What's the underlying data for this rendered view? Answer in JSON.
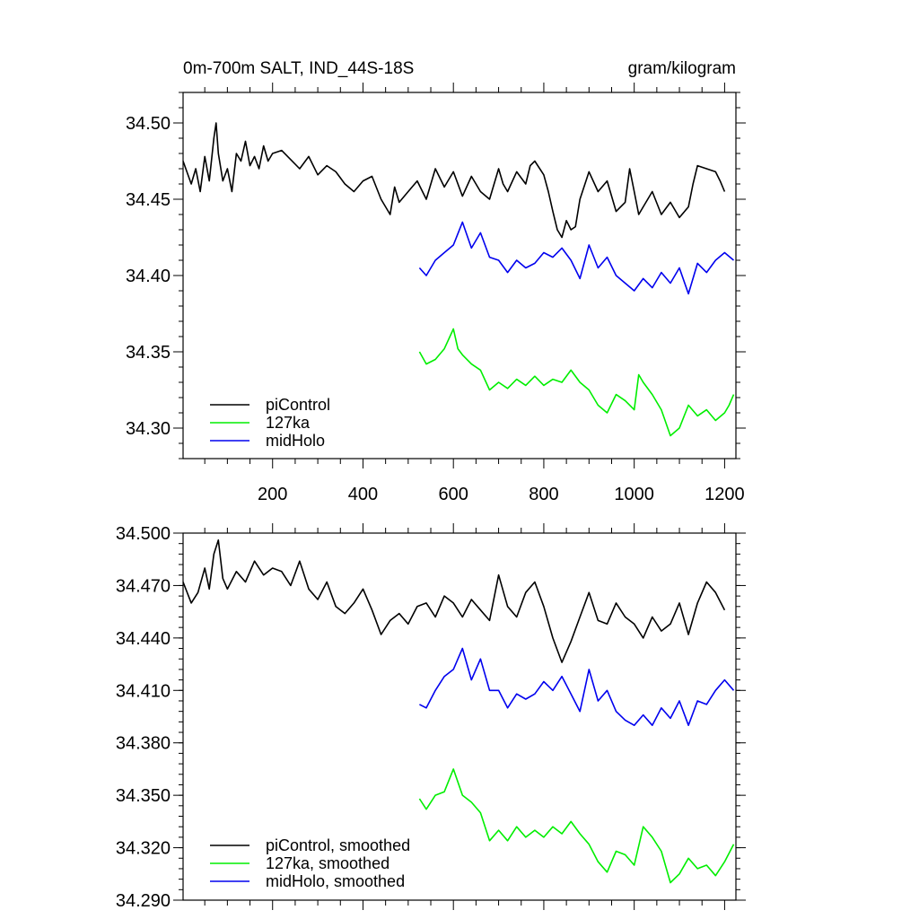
{
  "chart_data": [
    {
      "type": "line",
      "title_left": "0m-700m SALT, IND_44S-18S",
      "title_right": "gram/kilogram",
      "xlim": [
        2,
        1225
      ],
      "ylim": [
        34.28,
        34.52
      ],
      "x_ticks": [
        200,
        400,
        600,
        800,
        1000,
        1200
      ],
      "x_tick_labels": [
        "200",
        "400",
        "600",
        "800",
        "1000",
        "1200"
      ],
      "y_ticks": [
        34.3,
        34.35,
        34.4,
        34.45,
        34.5
      ],
      "y_tick_labels": [
        "34.30",
        "34.35",
        "34.40",
        "34.45",
        "34.50"
      ],
      "legend_position": "bottom-left",
      "colors": {
        "piControl": "#000000",
        "127ka": "#00ee00",
        "midHolo": "#0000ee"
      },
      "series": [
        {
          "name": "piControl",
          "color": "#000000",
          "x": [
            2,
            20,
            30,
            40,
            50,
            60,
            70,
            75,
            80,
            90,
            100,
            110,
            120,
            130,
            140,
            150,
            160,
            170,
            180,
            190,
            200,
            220,
            240,
            260,
            280,
            300,
            320,
            340,
            360,
            380,
            400,
            420,
            440,
            460,
            470,
            480,
            500,
            520,
            540,
            560,
            580,
            600,
            620,
            640,
            660,
            680,
            700,
            710,
            720,
            740,
            760,
            770,
            780,
            800,
            810,
            820,
            830,
            840,
            850,
            860,
            870,
            880,
            900,
            920,
            940,
            960,
            980,
            990,
            1000,
            1010,
            1020,
            1040,
            1060,
            1080,
            1100,
            1120,
            1130,
            1140,
            1160,
            1180,
            1190,
            1200
          ],
          "values": [
            34.475,
            34.46,
            34.47,
            34.455,
            34.478,
            34.462,
            34.49,
            34.5,
            34.48,
            34.462,
            34.47,
            34.455,
            34.48,
            34.475,
            34.488,
            34.472,
            34.478,
            34.47,
            34.485,
            34.475,
            34.48,
            34.482,
            34.476,
            34.47,
            34.478,
            34.466,
            34.472,
            34.468,
            34.46,
            34.455,
            34.462,
            34.465,
            34.45,
            34.44,
            34.458,
            34.448,
            34.455,
            34.462,
            34.45,
            34.47,
            34.458,
            34.468,
            34.452,
            34.465,
            34.455,
            34.45,
            34.47,
            34.46,
            34.455,
            34.468,
            34.46,
            34.472,
            34.475,
            34.466,
            34.455,
            34.442,
            34.43,
            34.425,
            34.436,
            34.43,
            34.432,
            34.45,
            34.468,
            34.455,
            34.462,
            34.442,
            34.448,
            34.47,
            34.455,
            34.44,
            34.445,
            34.455,
            34.44,
            34.448,
            34.438,
            34.445,
            34.46,
            34.472,
            34.47,
            34.468,
            34.462,
            34.455
          ]
        },
        {
          "name": "127ka",
          "color": "#00ee00",
          "x": [
            525,
            540,
            560,
            580,
            600,
            610,
            620,
            640,
            660,
            680,
            700,
            720,
            740,
            760,
            780,
            800,
            820,
            840,
            860,
            880,
            900,
            920,
            940,
            960,
            980,
            1000,
            1010,
            1020,
            1040,
            1060,
            1080,
            1100,
            1120,
            1140,
            1160,
            1180,
            1200,
            1210,
            1220
          ],
          "values": [
            34.35,
            34.342,
            34.345,
            34.352,
            34.365,
            34.352,
            34.348,
            34.342,
            34.338,
            34.325,
            34.33,
            34.326,
            34.332,
            34.328,
            34.334,
            34.328,
            34.332,
            34.33,
            34.338,
            34.33,
            34.325,
            34.315,
            34.31,
            34.322,
            34.318,
            34.312,
            34.335,
            34.33,
            34.322,
            34.312,
            34.295,
            34.3,
            34.315,
            34.308,
            34.312,
            34.305,
            34.31,
            34.315,
            34.322
          ]
        },
        {
          "name": "midHolo",
          "color": "#0000ee",
          "x": [
            525,
            540,
            560,
            580,
            600,
            620,
            640,
            660,
            680,
            700,
            720,
            740,
            760,
            780,
            800,
            820,
            840,
            860,
            880,
            900,
            920,
            940,
            960,
            980,
            1000,
            1020,
            1040,
            1060,
            1080,
            1100,
            1120,
            1140,
            1160,
            1180,
            1200,
            1220
          ],
          "values": [
            34.405,
            34.4,
            34.41,
            34.415,
            34.42,
            34.435,
            34.418,
            34.428,
            34.412,
            34.41,
            34.402,
            34.41,
            34.405,
            34.408,
            34.415,
            34.412,
            34.418,
            34.41,
            34.398,
            34.42,
            34.405,
            34.412,
            34.4,
            34.395,
            34.39,
            34.398,
            34.392,
            34.402,
            34.395,
            34.405,
            34.388,
            34.408,
            34.402,
            34.41,
            34.415,
            34.41
          ]
        }
      ],
      "legend": [
        "piControl",
        "127ka",
        "midHolo"
      ]
    },
    {
      "type": "line",
      "xlim": [
        2,
        1225
      ],
      "ylim": [
        34.29,
        34.5
      ],
      "y_ticks": [
        34.29,
        34.32,
        34.35,
        34.38,
        34.41,
        34.44,
        34.47,
        34.5
      ],
      "y_tick_labels": [
        "34.290",
        "34.320",
        "34.350",
        "34.380",
        "34.410",
        "34.440",
        "34.470",
        "34.500"
      ],
      "x_ticks": [
        200,
        400,
        600,
        800,
        1000,
        1200
      ],
      "legend_position": "bottom-left",
      "colors": {
        "piControl, smoothed": "#000000",
        "127ka, smoothed": "#00ee00",
        "midHolo, smoothed": "#0000ee"
      },
      "series": [
        {
          "name": "piControl, smoothed",
          "color": "#000000",
          "x": [
            2,
            20,
            35,
            50,
            60,
            70,
            80,
            90,
            100,
            120,
            140,
            160,
            180,
            200,
            220,
            240,
            260,
            280,
            300,
            320,
            340,
            360,
            380,
            400,
            420,
            440,
            460,
            480,
            500,
            520,
            540,
            560,
            580,
            600,
            620,
            640,
            660,
            680,
            700,
            720,
            740,
            760,
            780,
            800,
            820,
            840,
            860,
            880,
            900,
            920,
            940,
            960,
            980,
            1000,
            1020,
            1040,
            1060,
            1080,
            1100,
            1120,
            1140,
            1160,
            1180,
            1200
          ],
          "values": [
            34.472,
            34.46,
            34.466,
            34.48,
            34.468,
            34.488,
            34.496,
            34.474,
            34.468,
            34.478,
            34.472,
            34.484,
            34.476,
            34.48,
            34.478,
            34.47,
            34.484,
            34.468,
            34.462,
            34.472,
            34.458,
            34.454,
            34.46,
            34.468,
            34.456,
            34.442,
            34.45,
            34.454,
            34.448,
            34.458,
            34.46,
            34.452,
            34.464,
            34.46,
            34.452,
            34.462,
            34.456,
            34.45,
            34.476,
            34.458,
            34.452,
            34.466,
            34.472,
            34.458,
            34.44,
            34.426,
            34.438,
            34.452,
            34.466,
            34.45,
            34.448,
            34.46,
            34.452,
            34.448,
            34.44,
            34.452,
            34.444,
            34.448,
            34.46,
            34.442,
            34.46,
            34.472,
            34.466,
            34.456
          ]
        },
        {
          "name": "127ka, smoothed",
          "color": "#00ee00",
          "x": [
            525,
            540,
            560,
            580,
            600,
            620,
            640,
            660,
            680,
            700,
            720,
            740,
            760,
            780,
            800,
            820,
            840,
            860,
            880,
            900,
            920,
            940,
            960,
            980,
            1000,
            1020,
            1040,
            1060,
            1080,
            1100,
            1120,
            1140,
            1160,
            1180,
            1200,
            1220
          ],
          "values": [
            34.348,
            34.342,
            34.35,
            34.352,
            34.365,
            34.35,
            34.346,
            34.34,
            34.324,
            34.33,
            34.324,
            34.332,
            34.326,
            34.33,
            34.326,
            34.332,
            34.328,
            34.335,
            34.328,
            34.322,
            34.312,
            34.306,
            34.318,
            34.316,
            34.31,
            34.332,
            34.326,
            34.318,
            34.3,
            34.305,
            34.314,
            34.308,
            34.31,
            34.304,
            34.312,
            34.322
          ]
        },
        {
          "name": "midHolo, smoothed",
          "color": "#0000ee",
          "x": [
            525,
            540,
            560,
            580,
            600,
            620,
            640,
            660,
            680,
            700,
            720,
            740,
            760,
            780,
            800,
            820,
            840,
            860,
            880,
            900,
            920,
            940,
            960,
            980,
            1000,
            1020,
            1040,
            1060,
            1080,
            1100,
            1120,
            1140,
            1160,
            1180,
            1200,
            1220
          ],
          "values": [
            34.402,
            34.4,
            34.41,
            34.418,
            34.422,
            34.434,
            34.416,
            34.428,
            34.41,
            34.41,
            34.4,
            34.408,
            34.405,
            34.408,
            34.415,
            34.41,
            34.418,
            34.408,
            34.398,
            34.422,
            34.404,
            34.41,
            34.398,
            34.393,
            34.39,
            34.396,
            34.39,
            34.4,
            34.394,
            34.404,
            34.39,
            34.404,
            34.402,
            34.41,
            34.416,
            34.41
          ]
        }
      ],
      "legend": [
        "piControl, smoothed",
        "127ka, smoothed",
        "midHolo, smoothed"
      ]
    }
  ]
}
